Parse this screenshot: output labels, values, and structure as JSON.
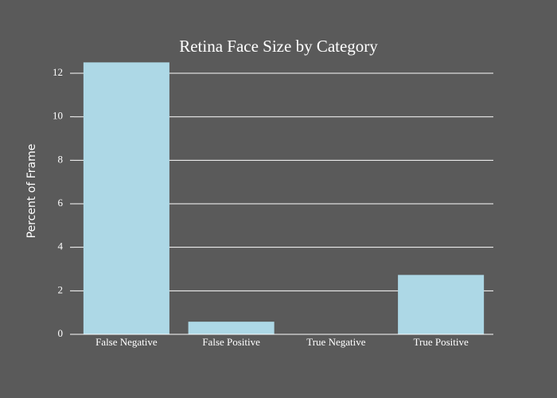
{
  "chart_data": {
    "type": "bar",
    "title": "Retina Face Size by Category",
    "y_label": "Percent of Frame",
    "categories": [
      "False Negative",
      "False Positive",
      "True Negative",
      "True Positive"
    ],
    "values": [
      12.5,
      0.58,
      0,
      2.73
    ],
    "color": "#add8e6",
    "ylim": [
      0,
      13
    ],
    "yticks": [
      0,
      2,
      4,
      6,
      8,
      10,
      12
    ],
    "grid": true
  }
}
